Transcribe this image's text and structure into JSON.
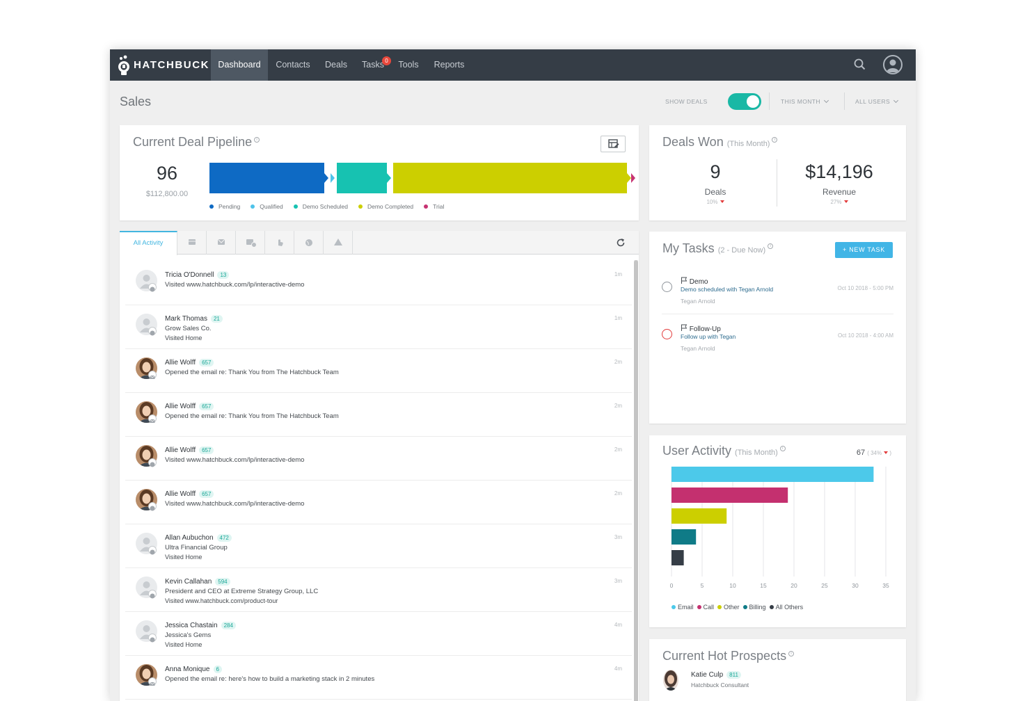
{
  "nav": {
    "logo_text": "HATCHBUCK",
    "items": [
      {
        "label": "Dashboard"
      },
      {
        "label": "Contacts"
      },
      {
        "label": "Deals"
      },
      {
        "label": "Tasks",
        "badge": "0"
      },
      {
        "label": "Tools"
      },
      {
        "label": "Reports"
      }
    ]
  },
  "header": {
    "title": "Sales",
    "show_deals_label": "SHOW DEALS",
    "period_label": "THIS MONTH",
    "users_label": "ALL USERS"
  },
  "pipeline": {
    "title": "Current Deal Pipeline",
    "count": "96",
    "amount": "$112,800.00",
    "stages": [
      {
        "label": "Pending",
        "color": "#0e6ac4",
        "value": 33
      },
      {
        "label": "Qualified",
        "color": "#4fc3ea",
        "value": 1
      },
      {
        "label": "Demo Scheduled",
        "color": "#17c2b1",
        "value": 15
      },
      {
        "label": "Demo Completed",
        "color": "#cccf00",
        "value": 66
      },
      {
        "label": "Trial",
        "color": "#c63372",
        "value": 0.5
      }
    ]
  },
  "deals_won": {
    "title": "Deals Won",
    "subtitle": "(This Month)",
    "deals_value": "9",
    "deals_label": "Deals",
    "deals_pct": "10%",
    "revenue_value": "$14,196",
    "revenue_label": "Revenue",
    "revenue_pct": "27%"
  },
  "activity": {
    "tab_all": "All Activity",
    "tab_icons": [
      "card-icon",
      "email-icon",
      "email-open-icon",
      "click-icon",
      "globe-icon",
      "alert-icon"
    ],
    "rows": [
      {
        "name": "Tricia O'Donnell",
        "count": "13",
        "line2": "Visited www.hatchbuck.com/lp/interactive-demo",
        "line3": "",
        "time": "1m",
        "photo": false,
        "type": "web"
      },
      {
        "name": "Mark Thomas",
        "count": "21",
        "line2": "Grow Sales Co.",
        "line3": "Visited Home",
        "time": "1m",
        "photo": false,
        "type": "web"
      },
      {
        "name": "Allie Wolff",
        "count": "657",
        "line2": "Opened the email re: Thank You from The Hatchbuck Team",
        "line3": "",
        "time": "2m",
        "photo": true,
        "type": "email"
      },
      {
        "name": "Allie Wolff",
        "count": "657",
        "line2": "Opened the email re: Thank You from The Hatchbuck Team",
        "line3": "",
        "time": "2m",
        "photo": true,
        "type": "email"
      },
      {
        "name": "Allie Wolff",
        "count": "657",
        "line2": "Visited www.hatchbuck.com/lp/interactive-demo",
        "line3": "",
        "time": "2m",
        "photo": true,
        "type": "web"
      },
      {
        "name": "Allie Wolff",
        "count": "657",
        "line2": "Visited www.hatchbuck.com/lp/interactive-demo",
        "line3": "",
        "time": "2m",
        "photo": true,
        "type": "web"
      },
      {
        "name": "Allan Aubuchon",
        "count": "472",
        "line2": "Ultra Financial Group",
        "line3": "Visited Home",
        "time": "3m",
        "photo": false,
        "type": "web"
      },
      {
        "name": "Kevin Callahan",
        "count": "594",
        "line2": "President and CEO at Extreme Strategy Group, LLC",
        "line3": "Visited www.hatchbuck.com/product-tour",
        "time": "3m",
        "photo": false,
        "type": "web"
      },
      {
        "name": "Jessica Chastain",
        "count": "284",
        "line2": "Jessica's Gems",
        "line3": "Visited Home",
        "time": "4m",
        "photo": false,
        "type": "web"
      },
      {
        "name": "Anna Monique",
        "count": "6",
        "line2": "Opened the email re: here's how to build a marketing stack in 2 minutes",
        "line3": "",
        "time": "4m",
        "photo": true,
        "type": "email"
      }
    ]
  },
  "tasks": {
    "title": "My Tasks",
    "subtitle": "(2 - Due Now)",
    "new_task_label": "+ NEW TASK",
    "items": [
      {
        "title": "Demo",
        "desc": "Demo scheduled with Tegan Arnold",
        "owner": "Tegan Arnold",
        "date": "Oct 10 2018 - 5:00 PM",
        "overdue": false
      },
      {
        "title": "Follow-Up",
        "desc": "Follow up with Tegan",
        "owner": "Tegan Arnold",
        "date": "Oct 10 2018 - 4:00 AM",
        "overdue": true
      }
    ]
  },
  "user_activity": {
    "title": "User Activity",
    "subtitle": "(This Month)",
    "total": "67",
    "pct": "34%"
  },
  "chart_data": {
    "type": "bar",
    "orientation": "horizontal",
    "categories": [
      "Email",
      "Call",
      "Other",
      "Billing",
      "All Others"
    ],
    "values": [
      33,
      19,
      9,
      4,
      2
    ],
    "colors": [
      "#4cc9ea",
      "#c4306f",
      "#cccf00",
      "#0f7b87",
      "#353d46"
    ],
    "xticks": [
      "0",
      "5",
      "10",
      "15",
      "20",
      "25",
      "30",
      "35"
    ],
    "xlim": [
      0,
      35
    ],
    "grid": true,
    "legend": "bottom"
  },
  "hot_prospects": {
    "title": "Current Hot Prospects",
    "items": [
      {
        "name": "Katie Culp",
        "count": "811",
        "title": "Hatchbuck Consultant"
      }
    ]
  }
}
